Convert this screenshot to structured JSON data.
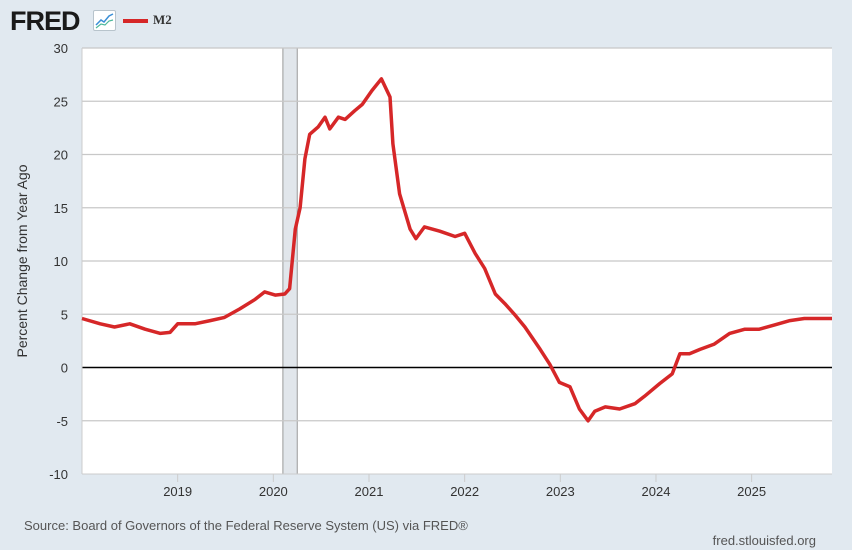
{
  "header": {
    "logo": "FRED",
    "legend": "M2"
  },
  "footer": {
    "source": "Source: Board of Governors of the Federal Reserve System (US) via FRED®",
    "url": "fred.stlouisfed.org"
  },
  "colors": {
    "series": "#d62728",
    "recession": "#e1e6eb",
    "background": "#e1e9f0"
  },
  "chart_data": {
    "type": "line",
    "title": "",
    "xlabel": "",
    "ylabel": "Percent Change from Year Ago",
    "xlim": [
      2018.0,
      2025.84
    ],
    "ylim": [
      -10,
      30
    ],
    "yticks": [
      30,
      25,
      20,
      15,
      10,
      5,
      0,
      -5,
      -10
    ],
    "xticks": [
      2019,
      2020,
      2021,
      2022,
      2023,
      2024,
      2025
    ],
    "recessions": [
      [
        2020.1,
        2020.25
      ]
    ],
    "series": [
      {
        "name": "M2",
        "points": [
          [
            2018.0,
            4.6
          ],
          [
            2018.19,
            4.1
          ],
          [
            2018.34,
            3.8
          ],
          [
            2018.5,
            4.1
          ],
          [
            2018.66,
            3.6
          ],
          [
            2018.82,
            3.2
          ],
          [
            2018.92,
            3.3
          ],
          [
            2019.0,
            4.1
          ],
          [
            2019.18,
            4.1
          ],
          [
            2019.34,
            4.4
          ],
          [
            2019.49,
            4.7
          ],
          [
            2019.65,
            5.5
          ],
          [
            2019.81,
            6.4
          ],
          [
            2019.91,
            7.1
          ],
          [
            2020.02,
            6.8
          ],
          [
            2020.12,
            6.9
          ],
          [
            2020.17,
            7.4
          ],
          [
            2020.23,
            13.0
          ],
          [
            2020.28,
            15.0
          ],
          [
            2020.33,
            19.6
          ],
          [
            2020.38,
            21.9
          ],
          [
            2020.47,
            22.6
          ],
          [
            2020.54,
            23.5
          ],
          [
            2020.59,
            22.4
          ],
          [
            2020.68,
            23.5
          ],
          [
            2020.75,
            23.3
          ],
          [
            2020.85,
            24.1
          ],
          [
            2020.93,
            24.7
          ],
          [
            2021.03,
            26.0
          ],
          [
            2021.13,
            27.1
          ],
          [
            2021.22,
            25.4
          ],
          [
            2021.25,
            21.0
          ],
          [
            2021.32,
            16.3
          ],
          [
            2021.43,
            13.0
          ],
          [
            2021.49,
            12.1
          ],
          [
            2021.58,
            13.2
          ],
          [
            2021.74,
            12.8
          ],
          [
            2021.9,
            12.3
          ],
          [
            2022.0,
            12.6
          ],
          [
            2022.11,
            10.7
          ],
          [
            2022.21,
            9.3
          ],
          [
            2022.32,
            6.9
          ],
          [
            2022.42,
            6.0
          ],
          [
            2022.52,
            5.0
          ],
          [
            2022.63,
            3.8
          ],
          [
            2022.79,
            1.7
          ],
          [
            2022.89,
            0.3
          ],
          [
            2022.99,
            -1.4
          ],
          [
            2023.1,
            -1.8
          ],
          [
            2023.2,
            -3.9
          ],
          [
            2023.29,
            -5.0
          ],
          [
            2023.36,
            -4.1
          ],
          [
            2023.47,
            -3.7
          ],
          [
            2023.62,
            -3.9
          ],
          [
            2023.78,
            -3.4
          ],
          [
            2023.88,
            -2.7
          ],
          [
            2024.04,
            -1.5
          ],
          [
            2024.17,
            -0.6
          ],
          [
            2024.25,
            1.3
          ],
          [
            2024.35,
            1.3
          ],
          [
            2024.46,
            1.7
          ],
          [
            2024.61,
            2.2
          ],
          [
            2024.77,
            3.2
          ],
          [
            2024.93,
            3.6
          ],
          [
            2025.08,
            3.6
          ],
          [
            2025.24,
            4.0
          ],
          [
            2025.4,
            4.4
          ],
          [
            2025.55,
            4.6
          ],
          [
            2025.71,
            4.6
          ],
          [
            2025.84,
            4.6
          ]
        ]
      }
    ],
    "grid": true,
    "legend": "top-left"
  }
}
